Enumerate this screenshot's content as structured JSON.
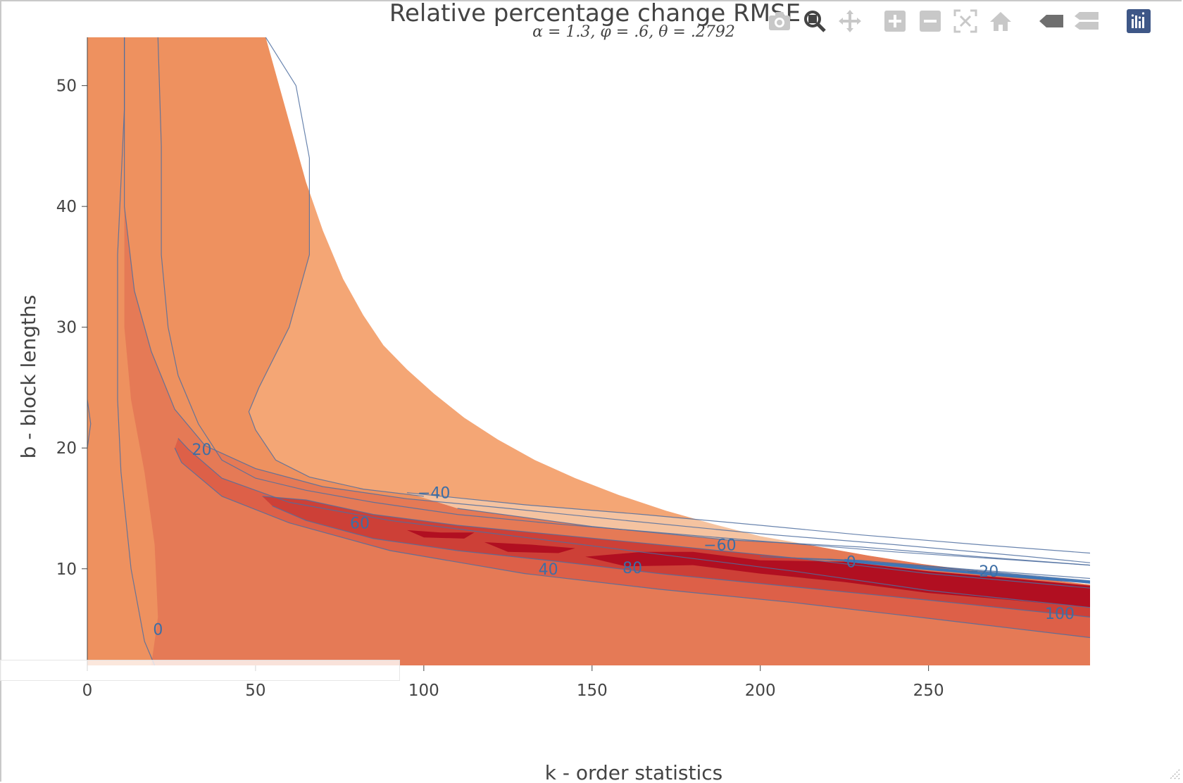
{
  "chart_data": {
    "type": "contour",
    "title": "Relative percentage change RMSE",
    "subtitle": "α = 1.3, φ = .6, θ = .2792",
    "xlabel": "k - order statistics",
    "ylabel": "b - block lengths",
    "xlim": [
      0,
      298
    ],
    "ylim": [
      2,
      54
    ],
    "x_ticks": [
      0,
      50,
      100,
      150,
      200,
      250
    ],
    "y_ticks": [
      10,
      20,
      30,
      40,
      50
    ],
    "colorscale": [
      "#f5c3a0",
      "#f4a675",
      "#ee915f",
      "#e57a56",
      "#dd6048",
      "#cd4037",
      "#b10f21"
    ],
    "contour_levels": [
      -60,
      -40,
      -20,
      0,
      20,
      40,
      60,
      80,
      100
    ],
    "contour_labels": [
      {
        "text": "20",
        "x": 34,
        "y": 19.9
      },
      {
        "text": "−40",
        "x": 103,
        "y": 16.3
      },
      {
        "text": "60",
        "x": 81,
        "y": 13.8
      },
      {
        "text": "40",
        "x": 137,
        "y": 10.0
      },
      {
        "text": "80",
        "x": 162,
        "y": 10.1
      },
      {
        "text": "−60",
        "x": 188,
        "y": 12.0
      },
      {
        "text": "0",
        "x": 227,
        "y": 10.6
      },
      {
        "text": "−20",
        "x": 266,
        "y": 9.8
      },
      {
        "text": "100",
        "x": 289,
        "y": 6.3
      },
      {
        "text": "0",
        "x": 21,
        "y": 5.0
      }
    ]
  },
  "modebar": {
    "buttons": [
      "camera-icon",
      "zoom-icon",
      "pan-icon",
      "zoom-in-icon",
      "zoom-out-icon",
      "autoscale-icon",
      "home-icon",
      "spike-lines-icon",
      "compare-hover-icon",
      "plotly-logo-icon"
    ]
  }
}
